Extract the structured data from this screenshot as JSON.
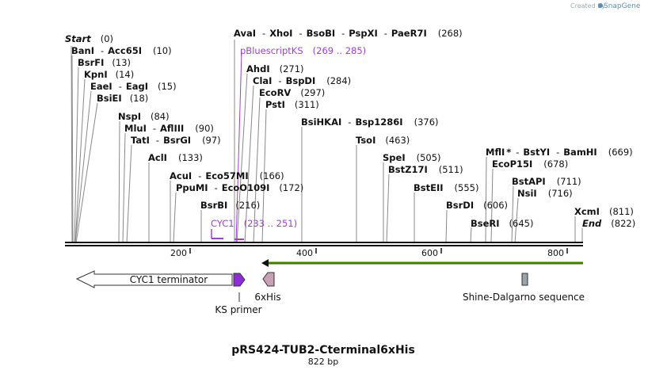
{
  "credit": {
    "prefix": "Created by",
    "brand": "SnapGene"
  },
  "title": "pRS424-TUB2-Cterminal6xHis",
  "subtitle": "822 bp",
  "tick_labels": [
    "200",
    "400",
    "600",
    "800"
  ],
  "sites": [
    {
      "name": "Start",
      "pos": "(0)"
    },
    {
      "name": "BanI",
      "sep": "-",
      "name2": "Acc65I",
      "pos": "(10)"
    },
    {
      "name": "BsrFI",
      "pos": "(13)"
    },
    {
      "name": "KpnI",
      "pos": "(14)"
    },
    {
      "name": "EaeI",
      "sep": "-",
      "name2": "EagI",
      "pos": "(15)"
    },
    {
      "name": "BsiEI",
      "pos": "(18)"
    },
    {
      "name": "NspI",
      "pos": "(84)"
    },
    {
      "name": "MluI",
      "sep": "-",
      "name2": "AflIII",
      "pos": "(90)"
    },
    {
      "name": "TatI",
      "sep": "-",
      "name2": "BsrGI",
      "pos": "(97)"
    },
    {
      "name": "AclI",
      "pos": "(133)"
    },
    {
      "name": "AcuI",
      "sep": "-",
      "name2": "Eco57MI",
      "pos": "(166)"
    },
    {
      "name": "PpuMI",
      "sep": "-",
      "name2": "EcoO109I",
      "pos": "(172)"
    },
    {
      "name": "BsrBI",
      "pos": "(216)"
    },
    {
      "name": "AvaI",
      "sep": "-",
      "name2": "XhoI",
      "sep2": "-",
      "name3": "BsoBI",
      "sep3": "-",
      "name4": "PspXI",
      "sep4": "-",
      "name5": "PaeR7I",
      "pos": "(268)"
    },
    {
      "name": "AhdI",
      "pos": "(271)"
    },
    {
      "name": "ClaI",
      "sep": "-",
      "name2": "BspDI",
      "pos": "(284)"
    },
    {
      "name": "EcoRV",
      "pos": "(297)"
    },
    {
      "name": "PstI",
      "pos": "(311)"
    },
    {
      "name": "BsiHKAI",
      "sep": "-",
      "name2": "Bsp1286I",
      "pos": "(376)"
    },
    {
      "name": "TsoI",
      "pos": "(463)"
    },
    {
      "name": "SpeI",
      "pos": "(505)"
    },
    {
      "name": "BstZ17I",
      "pos": "(511)"
    },
    {
      "name": "BstEII",
      "pos": "(555)"
    },
    {
      "name": "BsrDI",
      "pos": "(606)"
    },
    {
      "name": "BseRI",
      "pos": "(645)"
    },
    {
      "name": "MflI",
      "star": "*",
      "sep": "-",
      "name2": "BstYI",
      "sep2": "-",
      "name3": "BamHI",
      "pos": "(669)"
    },
    {
      "name": "EcoP15I",
      "pos": "(678)"
    },
    {
      "name": "BstAPI",
      "pos": "(711)"
    },
    {
      "name": "NsiI",
      "pos": "(716)"
    },
    {
      "name": "XcmI",
      "pos": "(811)"
    },
    {
      "name": "End",
      "pos": "(822)"
    }
  ],
  "primers": [
    {
      "name": "pBluescriptKS",
      "range": "(269 .. 285)"
    },
    {
      "name": "CYC1",
      "range": "(233 .. 251)"
    }
  ],
  "features": {
    "cyc1": "CYC1 terminator",
    "ks": "KS primer",
    "his": "6xHis",
    "sd": "Shine-Dalgarno sequence"
  },
  "colors": {
    "purple": "#9b3fd6",
    "ks_fill": "#8e2cd6",
    "his_fill": "#c8a0b8",
    "sd_fill": "#9aa4ae",
    "orf_line": "#8ccf3c"
  }
}
